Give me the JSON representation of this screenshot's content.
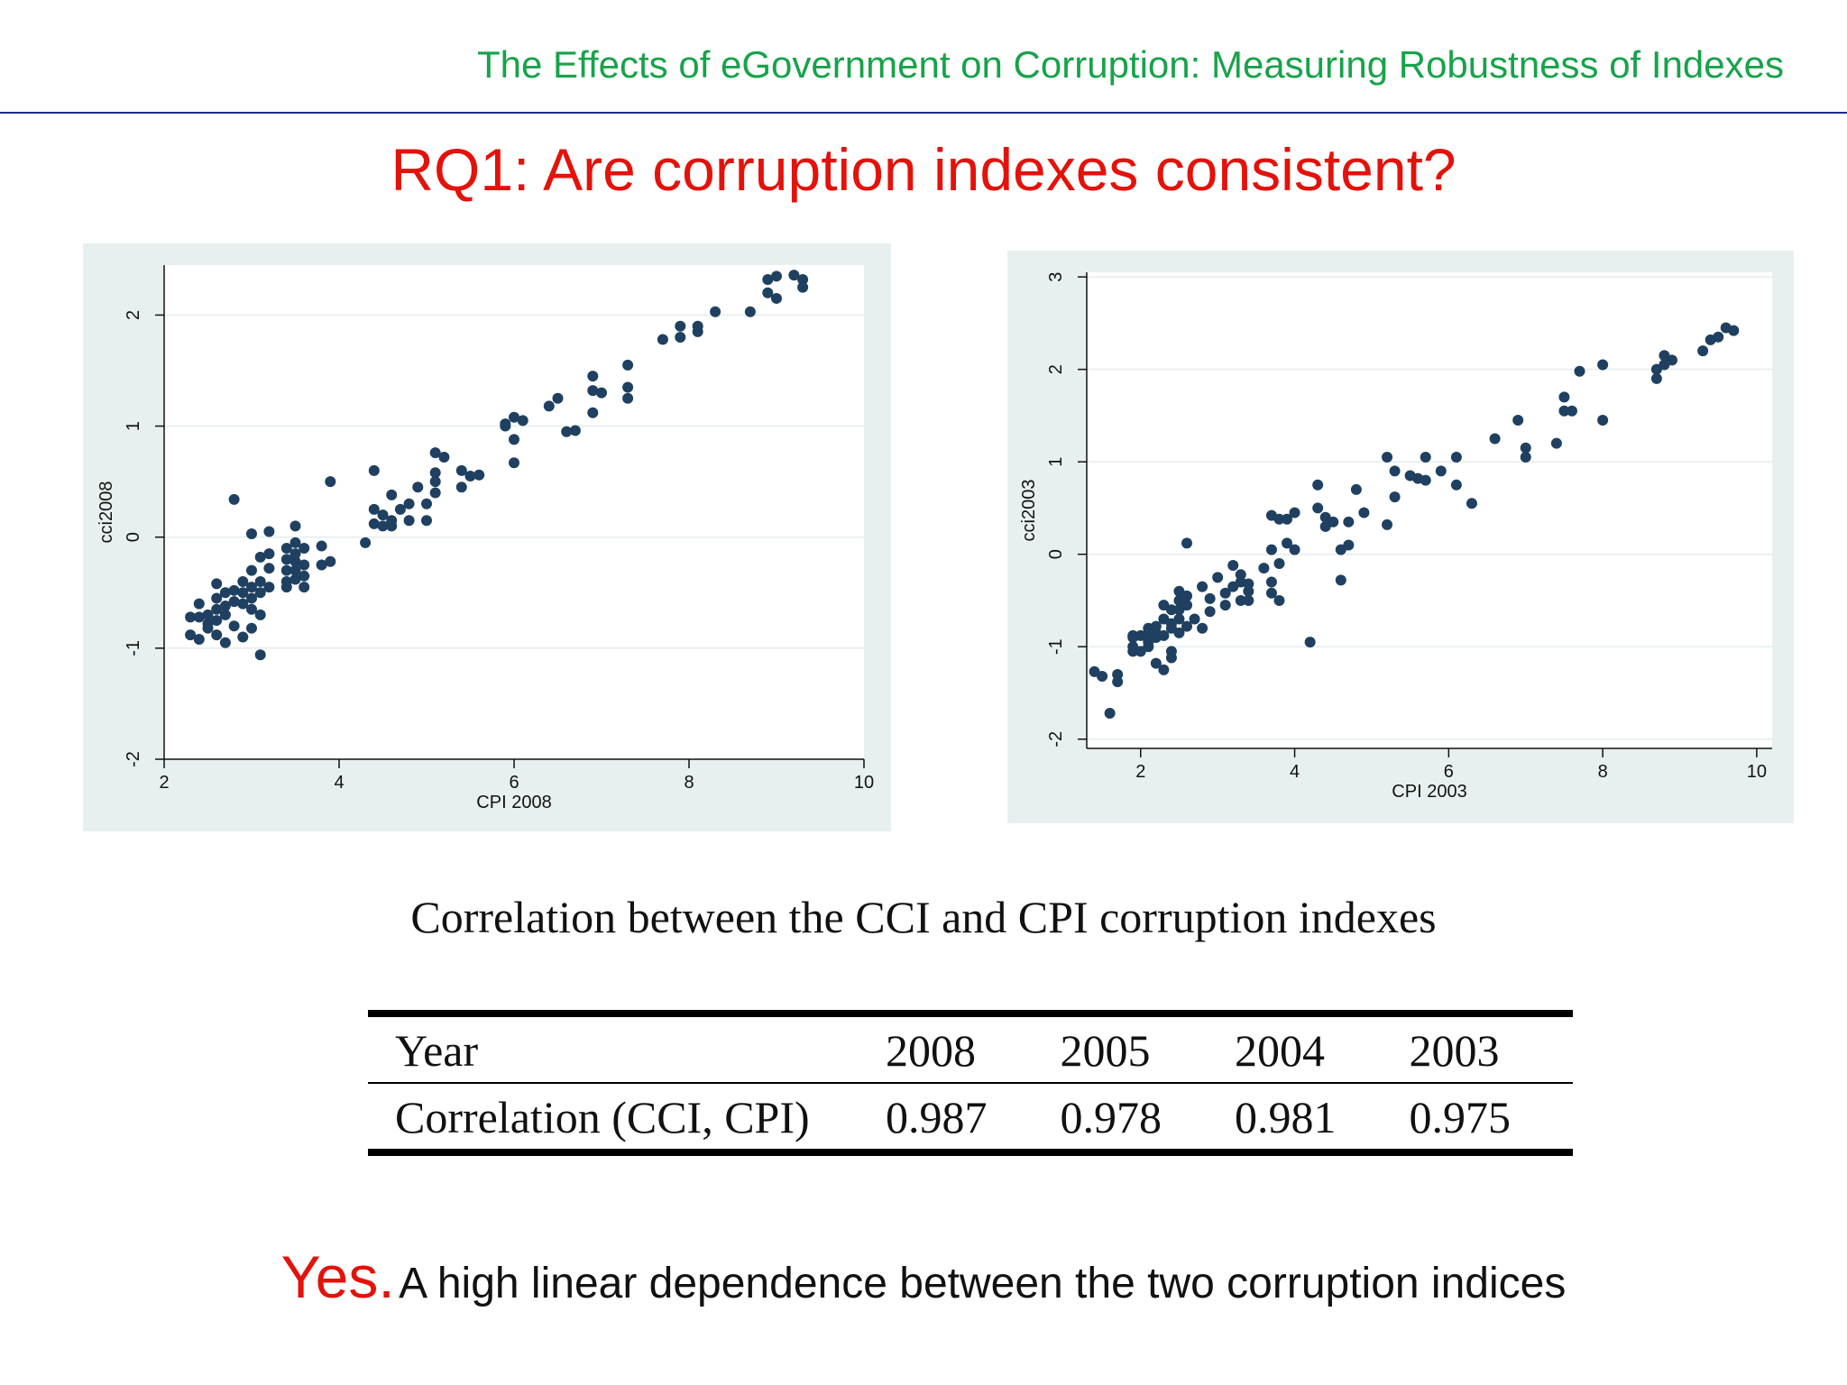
{
  "header": {
    "title": "The Effects of eGovernment on Corruption: Measuring Robustness of Indexes"
  },
  "slide": {
    "title": "RQ1: Are corruption indexes consistent?"
  },
  "chart_data": [
    {
      "type": "scatter",
      "xlabel": "CPI 2008",
      "ylabel": "cci2008",
      "xlim": [
        2,
        10
      ],
      "ylim": [
        -2,
        2.45
      ],
      "xticks": [
        2,
        4,
        6,
        8,
        10
      ],
      "yticks": [
        -2,
        -1,
        0,
        1,
        2
      ],
      "grid": true,
      "marker_color": "#1f4060",
      "points": [
        [
          2.3,
          -0.72
        ],
        [
          2.3,
          -0.88
        ],
        [
          2.4,
          -0.72
        ],
        [
          2.4,
          -0.92
        ],
        [
          2.4,
          -0.6
        ],
        [
          2.5,
          -0.78
        ],
        [
          2.5,
          -0.7
        ],
        [
          2.5,
          -0.82
        ],
        [
          2.6,
          -0.75
        ],
        [
          2.6,
          -0.65
        ],
        [
          2.6,
          -0.55
        ],
        [
          2.6,
          -0.42
        ],
        [
          2.6,
          -0.88
        ],
        [
          2.7,
          -0.5
        ],
        [
          2.7,
          -0.7
        ],
        [
          2.7,
          -0.95
        ],
        [
          2.7,
          -0.62
        ],
        [
          2.8,
          -0.58
        ],
        [
          2.8,
          -0.8
        ],
        [
          2.8,
          0.34
        ],
        [
          2.8,
          -0.48
        ],
        [
          2.9,
          -0.5
        ],
        [
          2.9,
          -0.6
        ],
        [
          2.9,
          -0.4
        ],
        [
          2.9,
          -0.9
        ],
        [
          3.0,
          -0.55
        ],
        [
          3.0,
          -0.45
        ],
        [
          3.0,
          -0.3
        ],
        [
          3.0,
          -0.65
        ],
        [
          3.0,
          0.03
        ],
        [
          3.0,
          -0.82
        ],
        [
          3.1,
          -0.4
        ],
        [
          3.1,
          -0.5
        ],
        [
          3.1,
          -0.18
        ],
        [
          3.1,
          -0.7
        ],
        [
          3.1,
          -1.06
        ],
        [
          3.2,
          -0.15
        ],
        [
          3.2,
          -0.45
        ],
        [
          3.2,
          0.05
        ],
        [
          3.2,
          -0.28
        ],
        [
          3.4,
          -0.3
        ],
        [
          3.4,
          -0.4
        ],
        [
          3.4,
          -0.2
        ],
        [
          3.4,
          -0.1
        ],
        [
          3.4,
          -0.45
        ],
        [
          3.5,
          -0.3
        ],
        [
          3.5,
          -0.22
        ],
        [
          3.5,
          -0.05
        ],
        [
          3.5,
          -0.38
        ],
        [
          3.5,
          0.1
        ],
        [
          3.5,
          -0.15
        ],
        [
          3.6,
          -0.25
        ],
        [
          3.6,
          -0.35
        ],
        [
          3.6,
          -0.1
        ],
        [
          3.6,
          -0.45
        ],
        [
          3.8,
          -0.25
        ],
        [
          3.8,
          -0.08
        ],
        [
          3.9,
          -0.22
        ],
        [
          3.9,
          0.5
        ],
        [
          4.3,
          -0.05
        ],
        [
          4.4,
          0.12
        ],
        [
          4.4,
          0.25
        ],
        [
          4.4,
          0.6
        ],
        [
          4.5,
          0.1
        ],
        [
          4.5,
          0.2
        ],
        [
          4.6,
          0.1
        ],
        [
          4.6,
          0.15
        ],
        [
          4.6,
          0.38
        ],
        [
          4.7,
          0.25
        ],
        [
          4.8,
          0.3
        ],
        [
          4.8,
          0.15
        ],
        [
          4.9,
          0.45
        ],
        [
          5.0,
          0.15
        ],
        [
          5.0,
          0.3
        ],
        [
          5.1,
          0.4
        ],
        [
          5.1,
          0.5
        ],
        [
          5.1,
          0.58
        ],
        [
          5.1,
          0.76
        ],
        [
          5.2,
          0.72
        ],
        [
          5.4,
          0.45
        ],
        [
          5.4,
          0.6
        ],
        [
          5.5,
          0.55
        ],
        [
          5.6,
          0.56
        ],
        [
          5.9,
          1.02
        ],
        [
          5.9,
          1.0
        ],
        [
          6.0,
          0.88
        ],
        [
          6.0,
          1.08
        ],
        [
          6.0,
          0.67
        ],
        [
          6.1,
          1.05
        ],
        [
          6.4,
          1.18
        ],
        [
          6.5,
          1.25
        ],
        [
          6.6,
          0.95
        ],
        [
          6.7,
          0.96
        ],
        [
          6.9,
          1.45
        ],
        [
          6.9,
          1.32
        ],
        [
          6.9,
          1.12
        ],
        [
          7.0,
          1.3
        ],
        [
          7.3,
          1.55
        ],
        [
          7.3,
          1.35
        ],
        [
          7.3,
          1.25
        ],
        [
          7.7,
          1.78
        ],
        [
          7.9,
          1.8
        ],
        [
          7.9,
          1.9
        ],
        [
          8.1,
          1.85
        ],
        [
          8.1,
          1.9
        ],
        [
          8.3,
          2.03
        ],
        [
          8.7,
          2.03
        ],
        [
          8.9,
          2.32
        ],
        [
          8.9,
          2.2
        ],
        [
          9.0,
          2.35
        ],
        [
          9.0,
          2.15
        ],
        [
          9.2,
          2.36
        ],
        [
          9.3,
          2.32
        ],
        [
          9.3,
          2.25
        ]
      ]
    },
    {
      "type": "scatter",
      "xlabel": "CPI 2003",
      "ylabel": "cci2003",
      "xlim": [
        1.3,
        10.2
      ],
      "ylim": [
        -2.1,
        3.05
      ],
      "xticks": [
        2,
        4,
        6,
        8,
        10
      ],
      "yticks": [
        -2,
        -1,
        0,
        1,
        2,
        3
      ],
      "grid": true,
      "marker_color": "#1f4060",
      "points": [
        [
          1.4,
          -1.27
        ],
        [
          1.5,
          -1.32
        ],
        [
          1.6,
          -1.72
        ],
        [
          1.7,
          -1.3
        ],
        [
          1.7,
          -1.38
        ],
        [
          1.9,
          -1.0
        ],
        [
          1.9,
          -0.9
        ],
        [
          1.9,
          -1.05
        ],
        [
          1.9,
          -0.88
        ],
        [
          2.0,
          -0.88
        ],
        [
          2.0,
          -1.05
        ],
        [
          2.1,
          -0.8
        ],
        [
          2.1,
          -0.95
        ],
        [
          2.1,
          -0.85
        ],
        [
          2.1,
          -1.0
        ],
        [
          2.2,
          -0.85
        ],
        [
          2.2,
          -0.78
        ],
        [
          2.2,
          -1.18
        ],
        [
          2.2,
          -0.9
        ],
        [
          2.3,
          -0.7
        ],
        [
          2.3,
          -1.25
        ],
        [
          2.3,
          -0.55
        ],
        [
          2.3,
          -0.88
        ],
        [
          2.4,
          -0.6
        ],
        [
          2.4,
          -0.8
        ],
        [
          2.4,
          -1.05
        ],
        [
          2.4,
          -1.12
        ],
        [
          2.4,
          -0.75
        ],
        [
          2.5,
          -0.4
        ],
        [
          2.5,
          -0.6
        ],
        [
          2.5,
          -0.7
        ],
        [
          2.5,
          -0.85
        ],
        [
          2.5,
          -0.5
        ],
        [
          2.6,
          0.12
        ],
        [
          2.6,
          -0.55
        ],
        [
          2.6,
          -0.78
        ],
        [
          2.6,
          -0.45
        ],
        [
          2.7,
          -0.7
        ],
        [
          2.8,
          -0.35
        ],
        [
          2.8,
          -0.8
        ],
        [
          2.9,
          -0.48
        ],
        [
          2.9,
          -0.62
        ],
        [
          3.0,
          -0.25
        ],
        [
          3.1,
          -0.42
        ],
        [
          3.1,
          -0.55
        ],
        [
          3.2,
          -0.12
        ],
        [
          3.2,
          -0.35
        ],
        [
          3.3,
          -0.3
        ],
        [
          3.3,
          -0.5
        ],
        [
          3.3,
          -0.22
        ],
        [
          3.4,
          -0.4
        ],
        [
          3.4,
          -0.5
        ],
        [
          3.4,
          -0.32
        ],
        [
          3.6,
          -0.15
        ],
        [
          3.7,
          0.42
        ],
        [
          3.7,
          -0.3
        ],
        [
          3.7,
          -0.42
        ],
        [
          3.7,
          0.05
        ],
        [
          3.8,
          0.38
        ],
        [
          3.8,
          -0.1
        ],
        [
          3.8,
          -0.5
        ],
        [
          3.9,
          0.38
        ],
        [
          3.9,
          0.12
        ],
        [
          4.0,
          0.45
        ],
        [
          4.0,
          0.05
        ],
        [
          4.2,
          -0.95
        ],
        [
          4.3,
          0.75
        ],
        [
          4.3,
          0.5
        ],
        [
          4.4,
          0.4
        ],
        [
          4.4,
          0.3
        ],
        [
          4.5,
          0.35
        ],
        [
          4.6,
          -0.28
        ],
        [
          4.6,
          0.05
        ],
        [
          4.7,
          0.35
        ],
        [
          4.7,
          0.1
        ],
        [
          4.8,
          0.7
        ],
        [
          4.9,
          0.45
        ],
        [
          5.2,
          0.32
        ],
        [
          5.2,
          1.05
        ],
        [
          5.3,
          0.9
        ],
        [
          5.3,
          0.62
        ],
        [
          5.5,
          0.85
        ],
        [
          5.6,
          0.82
        ],
        [
          5.7,
          1.05
        ],
        [
          5.7,
          0.8
        ],
        [
          5.9,
          0.9
        ],
        [
          6.1,
          1.05
        ],
        [
          6.1,
          0.75
        ],
        [
          6.3,
          0.55
        ],
        [
          6.6,
          1.25
        ],
        [
          6.9,
          1.45
        ],
        [
          7.0,
          1.15
        ],
        [
          7.0,
          1.05
        ],
        [
          7.4,
          1.2
        ],
        [
          7.5,
          1.7
        ],
        [
          7.5,
          1.55
        ],
        [
          7.6,
          1.55
        ],
        [
          7.7,
          1.98
        ],
        [
          8.0,
          2.05
        ],
        [
          8.0,
          1.45
        ],
        [
          8.7,
          2.0
        ],
        [
          8.7,
          1.9
        ],
        [
          8.8,
          2.05
        ],
        [
          8.8,
          2.15
        ],
        [
          8.9,
          2.1
        ],
        [
          9.3,
          2.2
        ],
        [
          9.4,
          2.32
        ],
        [
          9.5,
          2.35
        ],
        [
          9.6,
          2.45
        ],
        [
          9.7,
          2.42
        ]
      ]
    }
  ],
  "table": {
    "caption": "Correlation between the CCI and CPI corruption indexes",
    "header_label": "Year",
    "years": [
      "2008",
      "2005",
      "2004",
      "2003"
    ],
    "row_label": "Correlation (CCI, CPI)",
    "values": [
      "0.987",
      "0.978",
      "0.981",
      "0.975"
    ]
  },
  "conclusion": {
    "yes": "Yes.",
    "text": "A high linear dependence between the two corruption indices"
  }
}
